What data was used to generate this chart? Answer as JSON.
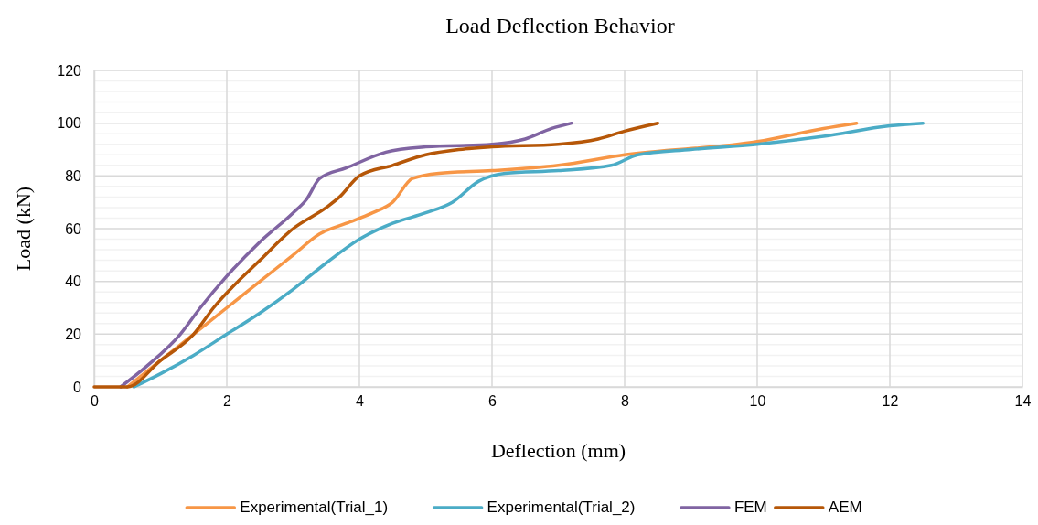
{
  "chart_data": {
    "type": "line",
    "title": "Load Deflection Behavior",
    "xlabel": "Deflection (mm)",
    "ylabel": "Load (kN)",
    "xlim": [
      0,
      14
    ],
    "xticks": [
      0,
      2,
      4,
      6,
      8,
      10,
      12,
      14
    ],
    "ylim": [
      0,
      120
    ],
    "yticks": [
      0,
      {
        "value": 4,
        "label": null
      },
      {
        "value": 8,
        "label": null
      },
      {
        "value": 12,
        "label": null
      },
      {
        "value": 16,
        "label": null
      },
      20,
      {
        "value": 24,
        "label": null
      },
      {
        "value": 28,
        "label": null
      },
      {
        "value": 32,
        "label": null
      },
      {
        "value": 36,
        "label": null
      },
      40,
      {
        "value": 44,
        "label": null
      },
      {
        "value": 48,
        "label": null
      },
      {
        "value": 52,
        "label": null
      },
      {
        "value": 56,
        "label": null
      },
      60,
      {
        "value": 64,
        "label": null
      },
      {
        "value": 68,
        "label": null
      },
      {
        "value": 72,
        "label": null
      },
      {
        "value": 76,
        "label": null
      },
      80,
      {
        "value": 84,
        "label": null
      },
      {
        "value": 88,
        "label": null
      },
      {
        "value": 92,
        "label": null
      },
      {
        "value": 96,
        "label": null
      },
      100,
      {
        "value": 104,
        "label": null
      },
      {
        "value": 108,
        "label": null
      },
      {
        "value": 112,
        "label": null
      },
      {
        "value": 116,
        "label": null
      },
      120
    ],
    "grid": true,
    "legend": "bottom",
    "marker": "none",
    "line_style": "solid",
    "series": [
      {
        "name": "Experimental(Trial_1)",
        "color": "#f79646",
        "x": [
          0.5,
          1,
          1.5,
          2,
          2.5,
          3,
          3.4,
          3.8,
          4.2,
          4.5,
          4.8,
          5.2,
          6,
          7,
          8,
          10,
          11,
          11.5
        ],
        "values": [
          0,
          10,
          20,
          30,
          40,
          50,
          58,
          62,
          66,
          70,
          79,
          81,
          82,
          84,
          88,
          93,
          98,
          100
        ]
      },
      {
        "name": "Experimental(Trial_2)",
        "color": "#4bacc6",
        "x": [
          0.6,
          1,
          1.5,
          2,
          2.5,
          3,
          3.5,
          4,
          4.5,
          5,
          5.4,
          5.8,
          6.2,
          7,
          7.8,
          8.2,
          9,
          10,
          11,
          12,
          12.5
        ],
        "values": [
          0,
          5,
          12,
          20,
          28,
          37,
          47,
          56,
          62,
          66,
          70,
          78,
          81,
          82,
          84,
          88,
          90,
          92,
          95,
          99,
          100
        ]
      },
      {
        "name": "FEM",
        "color": "#8064a2",
        "x": [
          0.4,
          0.8,
          1.3,
          1.6,
          2,
          2.5,
          3,
          3.2,
          3.4,
          3.8,
          4.4,
          5,
          6,
          6.5,
          6.9,
          7.2
        ],
        "values": [
          0,
          8,
          20,
          30,
          42,
          55,
          66,
          71,
          79,
          83,
          89,
          91,
          92,
          94,
          98,
          100
        ]
      },
      {
        "name": "AEM",
        "color": "#b65708",
        "x": [
          0,
          0.5,
          1,
          1.5,
          1.8,
          2.5,
          3,
          3.5,
          3.7,
          4,
          4.5,
          5,
          5.5,
          6,
          7,
          7.6,
          8,
          8.5
        ],
        "values": [
          0,
          0,
          10,
          20,
          30,
          48,
          60,
          68,
          72,
          80,
          84,
          88,
          90,
          91,
          92,
          94,
          97,
          100
        ]
      }
    ]
  }
}
